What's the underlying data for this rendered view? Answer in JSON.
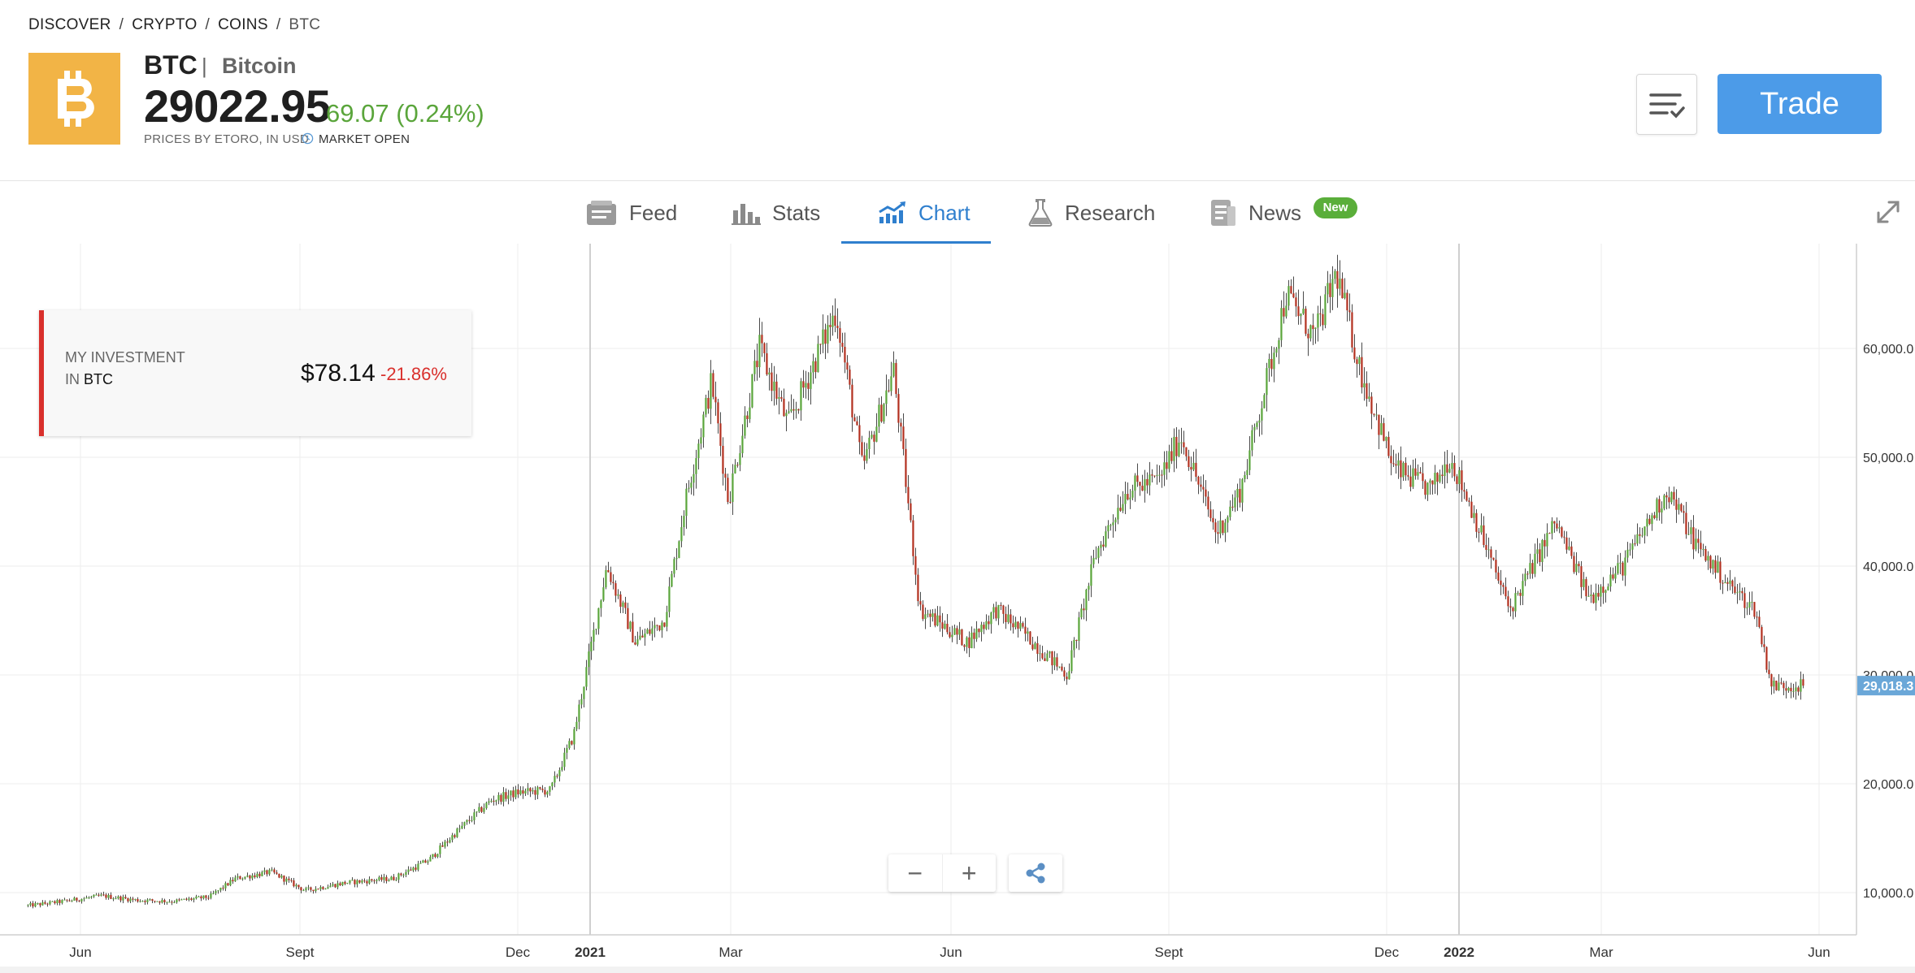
{
  "breadcrumb": [
    "DISCOVER",
    "CRYPTO",
    "COINS",
    "BTC"
  ],
  "breadcrumb_sep": "/",
  "instrument": {
    "symbol": "BTC",
    "name_sep": "|",
    "name": "Bitcoin",
    "price": "29022.95",
    "change": "69.07 (0.24%)",
    "priced_by": "PRICES BY ETORO, IN USD",
    "market_status": "MARKET OPEN",
    "logo_icon": "bitcoin-logo-icon",
    "logo_color": "#f2b446"
  },
  "actions": {
    "watchlist_icon": "watchlist-check-icon",
    "trade_label": "Trade"
  },
  "tabs": [
    {
      "label": "Feed",
      "icon": "feed-icon"
    },
    {
      "label": "Stats",
      "icon": "bar-stats-icon"
    },
    {
      "label": "Chart",
      "icon": "chart-trend-icon",
      "active": true
    },
    {
      "label": "Research",
      "icon": "flask-icon"
    },
    {
      "label": "News",
      "icon": "news-icon"
    }
  ],
  "news_badge": "New",
  "investment": {
    "label_line1": "MY INVESTMENT",
    "label_line2_prefix": "IN",
    "label_symbol": "BTC",
    "value": "$78.14",
    "pct": "-21.86%"
  },
  "zoom": {
    "minus": "−",
    "plus": "+"
  },
  "colors": {
    "accent": "#2f7fce",
    "up": "#5aa53b",
    "down": "#b3301f",
    "trade_button": "#4c9be8",
    "price_tag": "#6aa7d8"
  },
  "chart_data": {
    "type": "candlestick",
    "x_tick_labels": [
      "Jun",
      "Sept",
      "Dec",
      "2021",
      "Mar",
      "Jun",
      "Sept",
      "Dec",
      "2022",
      "Mar",
      "Jun"
    ],
    "y_tick_labels": [
      "10,000.0",
      "20,000.0",
      "30,000.0",
      "40,000.0",
      "50,000.0",
      "60,000.0"
    ],
    "ylim": [
      7000,
      69000
    ],
    "current_price_label": "29,018.3",
    "series_close": [
      [
        "2020-05-10",
        8800
      ],
      [
        "2020-05-25",
        9200
      ],
      [
        "2020-06-10",
        9700
      ],
      [
        "2020-06-25",
        9300
      ],
      [
        "2020-07-10",
        9200
      ],
      [
        "2020-07-25",
        9600
      ],
      [
        "2020-08-05",
        11300
      ],
      [
        "2020-08-20",
        11900
      ],
      [
        "2020-09-03",
        10200
      ],
      [
        "2020-09-20",
        10900
      ],
      [
        "2020-10-10",
        11300
      ],
      [
        "2020-10-25",
        13000
      ],
      [
        "2020-11-05",
        15500
      ],
      [
        "2020-11-20",
        18500
      ],
      [
        "2020-12-01",
        19200
      ],
      [
        "2020-12-15",
        19400
      ],
      [
        "2020-12-25",
        24500
      ],
      [
        "2021-01-08",
        40000
      ],
      [
        "2021-01-20",
        33000
      ],
      [
        "2021-02-01",
        35000
      ],
      [
        "2021-02-10",
        46000
      ],
      [
        "2021-02-21",
        57000
      ],
      [
        "2021-02-28",
        46000
      ],
      [
        "2021-03-13",
        60000
      ],
      [
        "2021-03-25",
        53000
      ],
      [
        "2021-04-14",
        63500
      ],
      [
        "2021-04-25",
        49000
      ],
      [
        "2021-05-08",
        58000
      ],
      [
        "2021-05-19",
        36000
      ],
      [
        "2021-06-08",
        33000
      ],
      [
        "2021-06-20",
        36000
      ],
      [
        "2021-07-01",
        34000
      ],
      [
        "2021-07-20",
        30000
      ],
      [
        "2021-08-01",
        41000
      ],
      [
        "2021-08-14",
        47000
      ],
      [
        "2021-08-28",
        48000
      ],
      [
        "2021-09-06",
        52000
      ],
      [
        "2021-09-21",
        43000
      ],
      [
        "2021-10-01",
        47000
      ],
      [
        "2021-10-15",
        60000
      ],
      [
        "2021-10-20",
        65000
      ],
      [
        "2021-11-01",
        61000
      ],
      [
        "2021-11-10",
        67000
      ],
      [
        "2021-11-20",
        58000
      ],
      [
        "2021-12-04",
        49000
      ],
      [
        "2021-12-20",
        47000
      ],
      [
        "2021-12-28",
        50000
      ],
      [
        "2022-01-05",
        46000
      ],
      [
        "2022-01-22",
        36000
      ],
      [
        "2022-02-10",
        44000
      ],
      [
        "2022-02-24",
        37000
      ],
      [
        "2022-03-10",
        40000
      ],
      [
        "2022-03-29",
        47000
      ],
      [
        "2022-04-10",
        42000
      ],
      [
        "2022-04-25",
        38000
      ],
      [
        "2022-05-05",
        36000
      ],
      [
        "2022-05-12",
        29000
      ],
      [
        "2022-05-26",
        29018
      ]
    ]
  }
}
